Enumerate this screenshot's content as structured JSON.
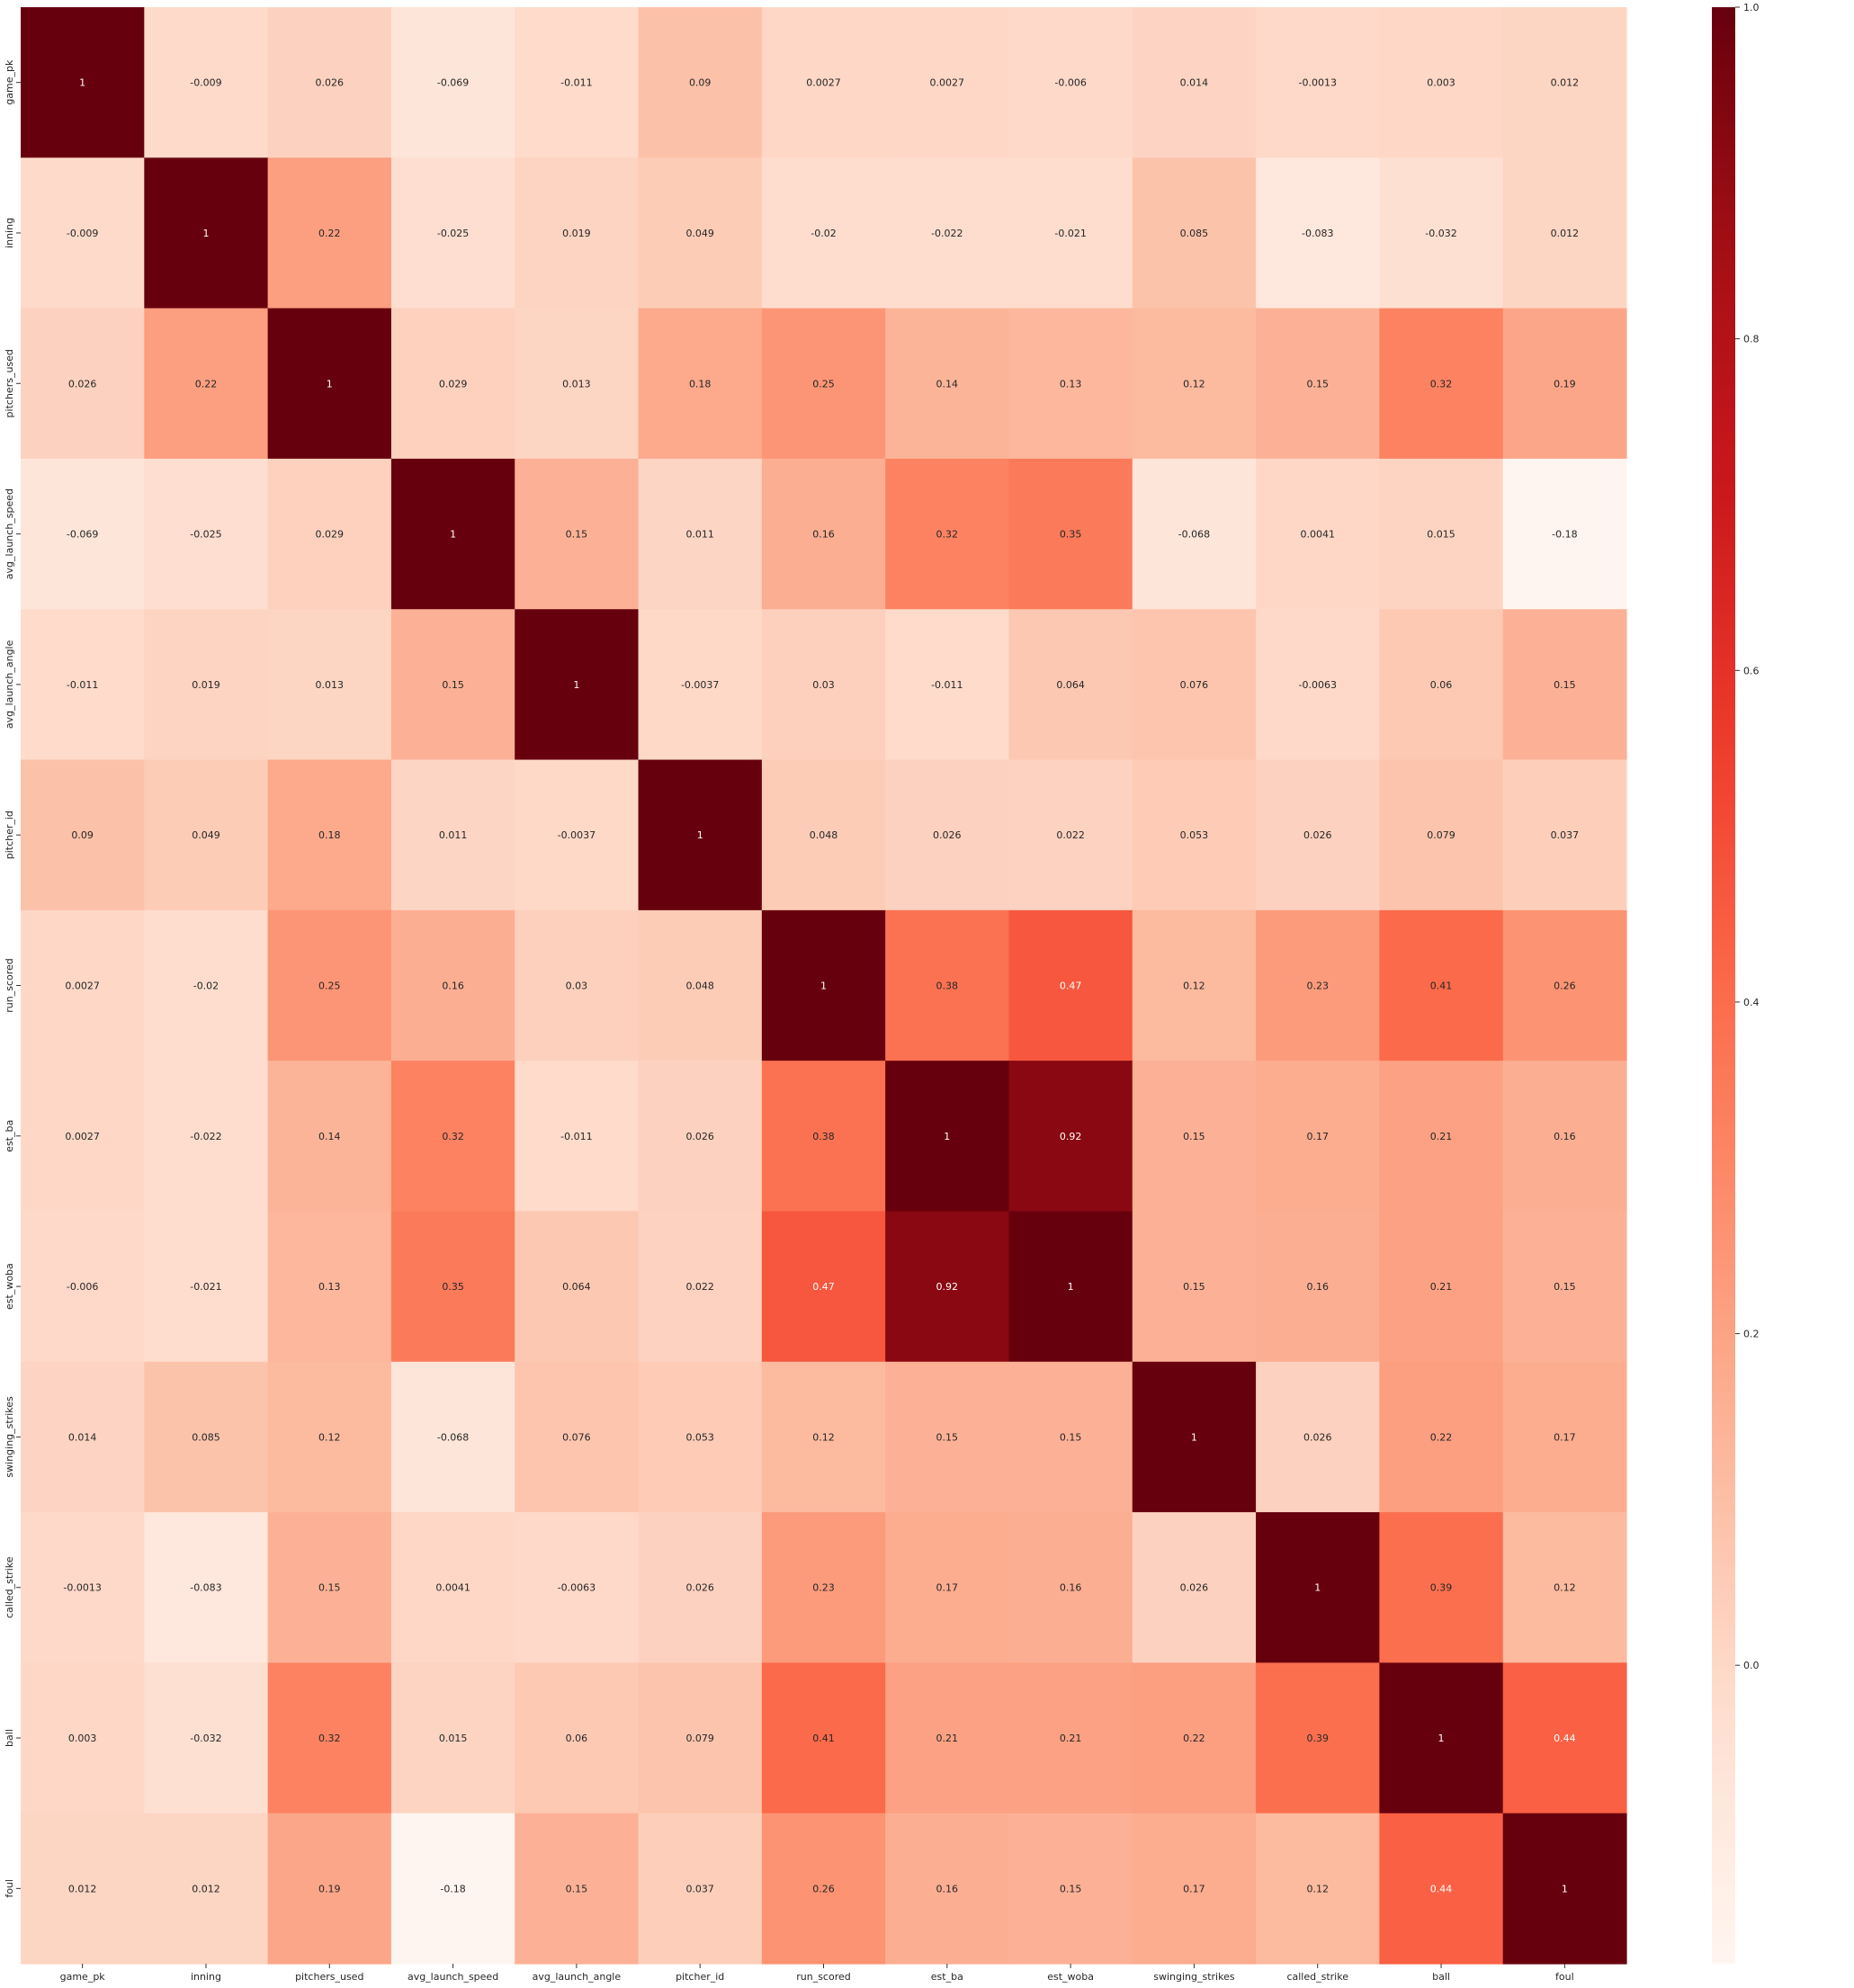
{
  "chart_data": {
    "type": "heatmap",
    "title": "",
    "xlabel": "",
    "ylabel": "",
    "labels": [
      "game_pk",
      "inning",
      "pitchers_used",
      "avg_launch_speed",
      "avg_launch_angle",
      "pitcher_id",
      "run_scored",
      "est_ba",
      "est_woba",
      "swinging_strikes",
      "called_strike",
      "ball",
      "foul"
    ],
    "matrix": [
      [
        "1",
        "-0.009",
        "0.026",
        "-0.069",
        "-0.011",
        "0.09",
        "0.0027",
        "0.0027",
        "-0.006",
        "0.014",
        "-0.0013",
        "0.003",
        "0.012"
      ],
      [
        "-0.009",
        "1",
        "0.22",
        "-0.025",
        "0.019",
        "0.049",
        "-0.02",
        "-0.022",
        "-0.021",
        "0.085",
        "-0.083",
        "-0.032",
        "0.012"
      ],
      [
        "0.026",
        "0.22",
        "1",
        "0.029",
        "0.013",
        "0.18",
        "0.25",
        "0.14",
        "0.13",
        "0.12",
        "0.15",
        "0.32",
        "0.19"
      ],
      [
        "-0.069",
        "-0.025",
        "0.029",
        "1",
        "0.15",
        "0.011",
        "0.16",
        "0.32",
        "0.35",
        "-0.068",
        "0.0041",
        "0.015",
        "-0.18"
      ],
      [
        "-0.011",
        "0.019",
        "0.013",
        "0.15",
        "1",
        "-0.0037",
        "0.03",
        "-0.011",
        "0.064",
        "0.076",
        "-0.0063",
        "0.06",
        "0.15"
      ],
      [
        "0.09",
        "0.049",
        "0.18",
        "0.011",
        "-0.0037",
        "1",
        "0.048",
        "0.026",
        "0.022",
        "0.053",
        "0.026",
        "0.079",
        "0.037"
      ],
      [
        "0.0027",
        "-0.02",
        "0.25",
        "0.16",
        "0.03",
        "0.048",
        "1",
        "0.38",
        "0.47",
        "0.12",
        "0.23",
        "0.41",
        "0.26"
      ],
      [
        "0.0027",
        "-0.022",
        "0.14",
        "0.32",
        "-0.011",
        "0.026",
        "0.38",
        "1",
        "0.92",
        "0.15",
        "0.17",
        "0.21",
        "0.16"
      ],
      [
        "-0.006",
        "-0.021",
        "0.13",
        "0.35",
        "0.064",
        "0.022",
        "0.47",
        "0.92",
        "1",
        "0.15",
        "0.16",
        "0.21",
        "0.15"
      ],
      [
        "0.014",
        "0.085",
        "0.12",
        "-0.068",
        "0.076",
        "0.053",
        "0.12",
        "0.15",
        "0.15",
        "1",
        "0.026",
        "0.22",
        "0.17"
      ],
      [
        "-0.0013",
        "-0.083",
        "0.15",
        "0.0041",
        "-0.0063",
        "0.026",
        "0.23",
        "0.17",
        "0.16",
        "0.026",
        "1",
        "0.39",
        "0.12"
      ],
      [
        "0.003",
        "-0.032",
        "0.32",
        "0.015",
        "0.06",
        "0.079",
        "0.41",
        "0.21",
        "0.21",
        "0.22",
        "0.39",
        "1",
        "0.44"
      ],
      [
        "0.012",
        "0.012",
        "0.19",
        "-0.18",
        "0.15",
        "0.037",
        "0.26",
        "0.16",
        "0.15",
        "0.17",
        "0.12",
        "0.44",
        "1"
      ]
    ],
    "colorscale": "Reds",
    "vmin": -0.18,
    "vmax": 1.0,
    "colorbar_ticks": [
      "0.0",
      "0.2",
      "0.4",
      "0.6",
      "0.8",
      "1.0"
    ],
    "colors": {
      "low": "#fff5f0",
      "high": "#67000d"
    }
  }
}
